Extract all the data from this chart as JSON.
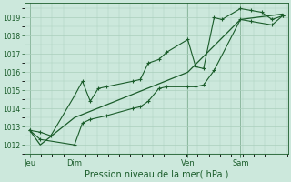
{
  "background_color": "#cce8dc",
  "plot_bg_color": "#cce8dc",
  "grid_color": "#aacfbc",
  "line_color": "#1a5c2a",
  "xlabel": "Pression niveau de la mer( hPa )",
  "ylim": [
    1011.5,
    1019.8
  ],
  "yticks": [
    1012,
    1013,
    1014,
    1015,
    1016,
    1017,
    1018,
    1019
  ],
  "day_labels": [
    "Jeu",
    "Dim",
    "Ven",
    "Sam"
  ],
  "day_positions": [
    0.02,
    0.19,
    0.62,
    0.82
  ],
  "series1_x": [
    0.02,
    0.06,
    0.1,
    0.19,
    0.22,
    0.25,
    0.28,
    0.31,
    0.41,
    0.44,
    0.47,
    0.51,
    0.54,
    0.62,
    0.65,
    0.68,
    0.72,
    0.75,
    0.82,
    0.86,
    0.9,
    0.94,
    0.98
  ],
  "series1_y": [
    1012.8,
    1012.7,
    1012.5,
    1014.7,
    1015.5,
    1014.4,
    1015.1,
    1015.2,
    1015.5,
    1015.6,
    1016.5,
    1016.7,
    1017.1,
    1017.8,
    1016.3,
    1016.2,
    1019.0,
    1018.9,
    1019.5,
    1019.4,
    1019.3,
    1018.9,
    1019.1
  ],
  "series2_x": [
    0.02,
    0.06,
    0.19,
    0.22,
    0.25,
    0.31,
    0.41,
    0.44,
    0.47,
    0.51,
    0.54,
    0.62,
    0.65,
    0.68,
    0.72,
    0.82,
    0.86,
    0.94,
    0.98
  ],
  "series2_y": [
    1012.8,
    1012.3,
    1012.0,
    1013.2,
    1013.4,
    1013.6,
    1014.0,
    1014.1,
    1014.4,
    1015.1,
    1015.2,
    1015.2,
    1015.2,
    1015.3,
    1016.1,
    1018.9,
    1018.8,
    1018.6,
    1019.1
  ],
  "series3_x": [
    0.02,
    0.06,
    0.19,
    0.62,
    0.82,
    0.98
  ],
  "series3_y": [
    1012.8,
    1012.0,
    1013.5,
    1016.0,
    1018.9,
    1019.2
  ]
}
